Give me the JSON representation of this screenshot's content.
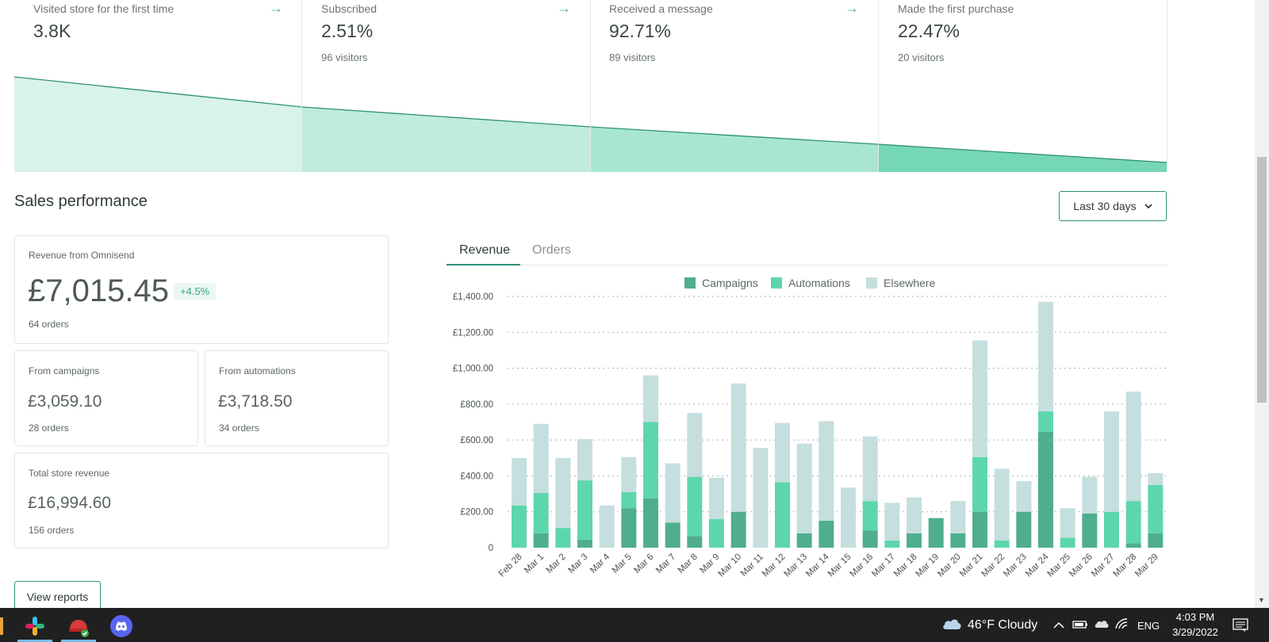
{
  "funnel": {
    "steps": [
      {
        "label": "Visited store for the first time",
        "value": "3.8K",
        "visitors": ""
      },
      {
        "label": "Subscribed",
        "value": "2.51%",
        "visitors": "96 visitors"
      },
      {
        "label": "Received a message",
        "value": "92.71%",
        "visitors": "89 visitors"
      },
      {
        "label": "Made the first purchase",
        "value": "22.47%",
        "visitors": "20 visitors"
      }
    ],
    "arrow_icon": "arrow-right-icon",
    "colors": [
      "#d8f3ea",
      "#bfecdc",
      "#a8e6d1",
      "#76d7b6"
    ]
  },
  "sales": {
    "title": "Sales performance",
    "range_label": "Last 30 days",
    "revenue_card": {
      "label": "Revenue from Omnisend",
      "value": "£7,015.45",
      "change": "+4.5%",
      "orders": "64 orders"
    },
    "campaigns_card": {
      "label": "From campaigns",
      "value": "£3,059.10",
      "orders": "28 orders"
    },
    "automations_card": {
      "label": "From automations",
      "value": "£3,718.50",
      "orders": "34 orders"
    },
    "total_card": {
      "label": "Total store revenue",
      "value": "£16,994.60",
      "orders": "156 orders"
    },
    "view_reports": "View reports"
  },
  "tabs": [
    {
      "label": "Revenue",
      "active": true
    },
    {
      "label": "Orders",
      "active": false
    }
  ],
  "chart_data": {
    "type": "bar",
    "stacked": true,
    "categories": [
      "Feb 28",
      "Mar 1",
      "Mar 2",
      "Mar 3",
      "Mar 4",
      "Mar 5",
      "Mar 6",
      "Mar 7",
      "Mar 8",
      "Mar 9",
      "Mar 10",
      "Mar 11",
      "Mar 12",
      "Mar 13",
      "Mar 14",
      "Mar 15",
      "Mar 16",
      "Mar 17",
      "Mar 18",
      "Mar 19",
      "Mar 20",
      "Mar 21",
      "Mar 22",
      "Mar 23",
      "Mar 24",
      "Mar 25",
      "Mar 26",
      "Mar 27",
      "Mar 28",
      "Mar 29"
    ],
    "series": [
      {
        "name": "Campaigns",
        "color": "#4fae8f",
        "values": [
          0,
          80,
          0,
          45,
          0,
          220,
          275,
          140,
          65,
          0,
          200,
          0,
          0,
          80,
          150,
          0,
          95,
          0,
          80,
          165,
          80,
          200,
          0,
          200,
          645,
          0,
          190,
          0,
          25,
          80
        ]
      },
      {
        "name": "Automations",
        "color": "#5dd6ad",
        "values": [
          235,
          225,
          110,
          330,
          0,
          90,
          425,
          0,
          330,
          160,
          0,
          0,
          365,
          0,
          0,
          0,
          165,
          40,
          0,
          0,
          0,
          305,
          40,
          0,
          115,
          55,
          0,
          200,
          235,
          270
        ]
      },
      {
        "name": "Elsewhere",
        "color": "#c5dede",
        "values": [
          265,
          385,
          390,
          230,
          235,
          195,
          260,
          330,
          355,
          230,
          715,
          555,
          330,
          500,
          555,
          335,
          360,
          210,
          200,
          0,
          180,
          650,
          400,
          170,
          610,
          165,
          205,
          560,
          610,
          65
        ]
      }
    ],
    "ylim": [
      0,
      1400
    ],
    "yticks": [
      0,
      200,
      400,
      600,
      800,
      1000,
      1200,
      1400
    ],
    "ytick_labels": [
      "0",
      "£200.00",
      "£400.00",
      "£600.00",
      "£800.00",
      "£1,000.00",
      "£1,200.00",
      "£1,400.00"
    ],
    "grid": true,
    "legend": "top-center"
  },
  "taskbar": {
    "apps": [
      {
        "name": "slack-icon",
        "color": "#e01e5a"
      },
      {
        "name": "red-app-icon",
        "color": "#d93a3a"
      },
      {
        "name": "discord-icon",
        "color": "#5865f2"
      }
    ],
    "weather": "46°F  Cloudy",
    "language": "ENG",
    "time": "4:03 PM",
    "date": "3/29/2022"
  }
}
